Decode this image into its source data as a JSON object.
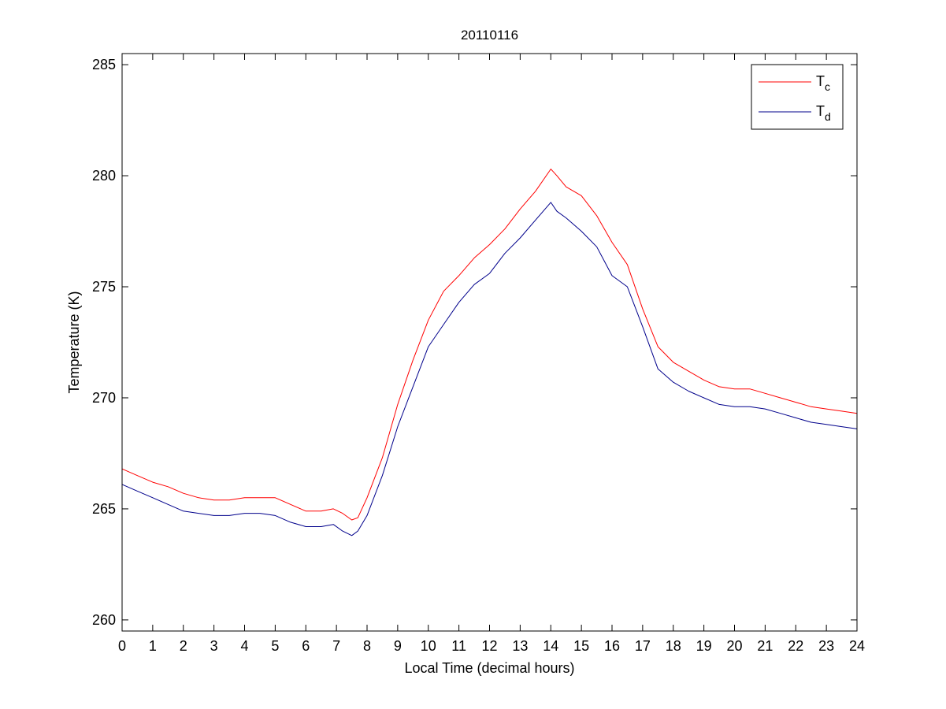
{
  "chart_data": {
    "type": "line",
    "title": "20110116",
    "xlabel": "Local Time (decimal hours)",
    "ylabel": "Temperature (K)",
    "xlim": [
      0,
      24
    ],
    "ylim": [
      259.5,
      285.5
    ],
    "xticks": [
      0,
      1,
      2,
      3,
      4,
      5,
      6,
      7,
      8,
      9,
      10,
      11,
      12,
      13,
      14,
      15,
      16,
      17,
      18,
      19,
      20,
      21,
      22,
      23,
      24
    ],
    "yticks": [
      260,
      265,
      270,
      275,
      280,
      285
    ],
    "grid": false,
    "legend_position": "top-right",
    "series": [
      {
        "name": "T",
        "subscript": "c",
        "color": "#ff0000",
        "x": [
          0,
          0.5,
          1,
          1.5,
          2,
          2.5,
          3,
          3.5,
          4,
          4.5,
          5,
          5.5,
          6,
          6.5,
          6.9,
          7.2,
          7.5,
          7.7,
          8,
          8.5,
          9,
          9.5,
          10,
          10.5,
          11,
          11.5,
          12,
          12.5,
          13,
          13.5,
          14,
          14.2,
          14.5,
          15,
          15.5,
          16,
          16.5,
          17,
          17.5,
          18,
          18.5,
          19,
          19.5,
          20,
          20.5,
          21,
          21.5,
          22,
          22.5,
          23,
          23.5,
          24
        ],
        "y": [
          266.8,
          266.5,
          266.2,
          266.0,
          265.7,
          265.5,
          265.4,
          265.4,
          265.5,
          265.5,
          265.5,
          265.2,
          264.9,
          264.9,
          265.0,
          264.8,
          264.5,
          264.6,
          265.5,
          267.3,
          269.7,
          271.7,
          273.5,
          274.8,
          275.5,
          276.3,
          276.9,
          277.6,
          278.5,
          279.3,
          280.3,
          280.0,
          279.5,
          279.1,
          278.2,
          277.0,
          276.0,
          274.0,
          272.3,
          271.6,
          271.2,
          270.8,
          270.5,
          270.4,
          270.4,
          270.2,
          270.0,
          269.8,
          269.6,
          269.5,
          269.4,
          269.3
        ]
      },
      {
        "name": "T",
        "subscript": "d",
        "color": "#00008b",
        "x": [
          0,
          0.5,
          1,
          1.5,
          2,
          2.5,
          3,
          3.5,
          4,
          4.5,
          5,
          5.5,
          6,
          6.5,
          6.9,
          7.2,
          7.5,
          7.7,
          8,
          8.5,
          9,
          9.5,
          10,
          10.5,
          11,
          11.5,
          12,
          12.5,
          13,
          13.5,
          14,
          14.2,
          14.5,
          15,
          15.5,
          16,
          16.5,
          17,
          17.5,
          18,
          18.5,
          19,
          19.5,
          20,
          20.5,
          21,
          21.5,
          22,
          22.5,
          23,
          23.5,
          24
        ],
        "y": [
          266.1,
          265.8,
          265.5,
          265.2,
          264.9,
          264.8,
          264.7,
          264.7,
          264.8,
          264.8,
          264.7,
          264.4,
          264.2,
          264.2,
          264.3,
          264.0,
          263.8,
          264.0,
          264.7,
          266.5,
          268.7,
          270.5,
          272.3,
          273.3,
          274.3,
          275.1,
          275.6,
          276.5,
          277.2,
          278.0,
          278.8,
          278.4,
          278.1,
          277.5,
          276.8,
          275.5,
          275.0,
          273.2,
          271.3,
          270.7,
          270.3,
          270.0,
          269.7,
          269.6,
          269.6,
          269.5,
          269.3,
          269.1,
          268.9,
          268.8,
          268.7,
          268.6
        ]
      }
    ]
  }
}
